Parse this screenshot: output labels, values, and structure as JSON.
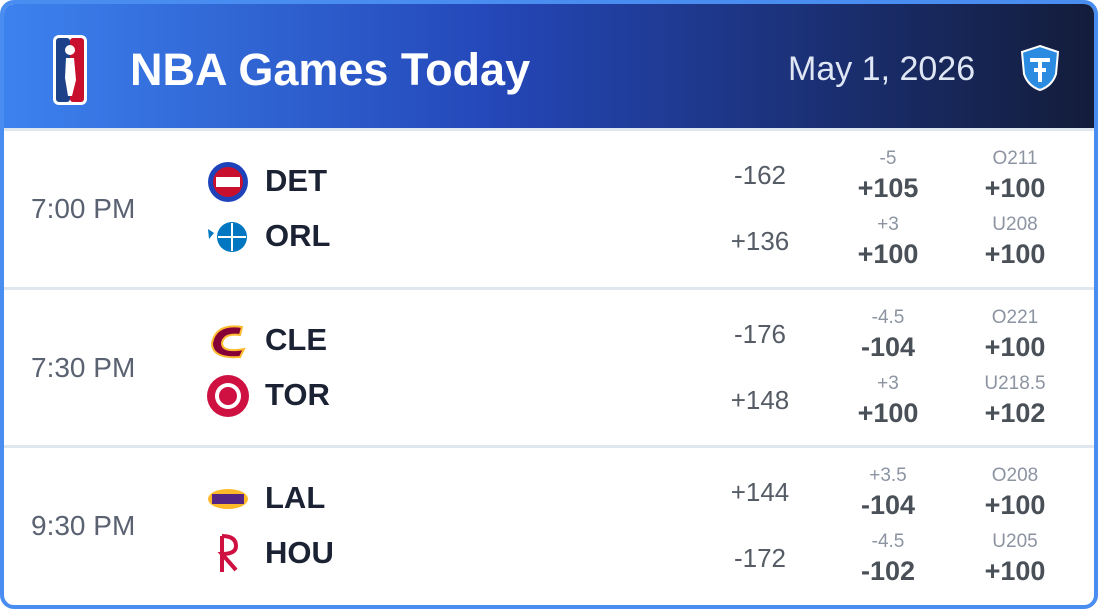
{
  "header": {
    "title": "NBA Games Today",
    "date": "May 1, 2026"
  },
  "games": [
    {
      "time": "7:00 PM",
      "teams": [
        {
          "abbr": "DET",
          "moneyline": "-162",
          "spread": "-5",
          "spread_odds": "+105",
          "total": "O211",
          "total_odds": "+100"
        },
        {
          "abbr": "ORL",
          "moneyline": "+136",
          "spread": "+3",
          "spread_odds": "+100",
          "total": "U208",
          "total_odds": "+100"
        }
      ]
    },
    {
      "time": "7:30 PM",
      "teams": [
        {
          "abbr": "CLE",
          "moneyline": "-176",
          "spread": "-4.5",
          "spread_odds": "-104",
          "total": "O221",
          "total_odds": "+100"
        },
        {
          "abbr": "TOR",
          "moneyline": "+148",
          "spread": "+3",
          "spread_odds": "+100",
          "total": "U218.5",
          "total_odds": "+102"
        }
      ]
    },
    {
      "time": "9:30 PM",
      "teams": [
        {
          "abbr": "LAL",
          "moneyline": "+144",
          "spread": "+3.5",
          "spread_odds": "-104",
          "total": "O208",
          "total_odds": "+100"
        },
        {
          "abbr": "HOU",
          "moneyline": "-172",
          "spread": "-4.5",
          "spread_odds": "-102",
          "total": "U205",
          "total_odds": "+100"
        }
      ]
    }
  ]
}
